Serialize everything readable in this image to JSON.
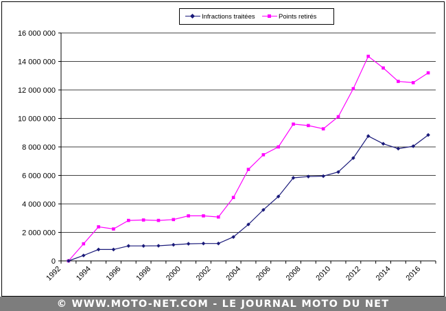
{
  "chart_data": {
    "type": "line",
    "x": [
      1992.5,
      1993.5,
      1994.5,
      1995.5,
      1996.5,
      1997.5,
      1998.5,
      1999.5,
      2000.5,
      2001.5,
      2002.5,
      2003.5,
      2004.5,
      2005.5,
      2006.5,
      2007.5,
      2008.5,
      2009.5,
      2010.5,
      2011.5,
      2012.5,
      2013.5,
      2014.5,
      2015.5,
      2016.5
    ],
    "series": [
      {
        "name": "Infractions traitées",
        "color": "#1a1a7a",
        "marker": "diamond",
        "values": [
          0,
          380000,
          800000,
          800000,
          1050000,
          1050000,
          1060000,
          1130000,
          1200000,
          1220000,
          1220000,
          1680000,
          2560000,
          3580000,
          4520000,
          5830000,
          5920000,
          5950000,
          6240000,
          7220000,
          8760000,
          8220000,
          7880000,
          8050000,
          8840000
        ]
      },
      {
        "name": "Points retirés",
        "color": "#ff00ff",
        "marker": "square",
        "values": [
          0,
          1200000,
          2390000,
          2240000,
          2840000,
          2870000,
          2840000,
          2900000,
          3160000,
          3160000,
          3080000,
          4450000,
          6420000,
          7450000,
          8000000,
          9600000,
          9500000,
          9270000,
          10120000,
          12090000,
          14360000,
          13540000,
          12600000,
          12510000,
          13200000
        ]
      }
    ],
    "x_ticks": [
      "1992",
      "1994",
      "1996",
      "1998",
      "2000",
      "2002",
      "2004",
      "2006",
      "2008",
      "2010",
      "2012",
      "2014",
      "2016"
    ],
    "y_ticks": [
      "0",
      "2 000 000",
      "4 000 000",
      "6 000 000",
      "8 000 000",
      "10 000 000",
      "12 000 000",
      "14 000 000",
      "16 000 000"
    ],
    "ylim": [
      0,
      16000000
    ],
    "xlim": [
      1992,
      2017
    ],
    "grid": "horizontal",
    "legend_position": "top-center"
  },
  "legend": {
    "infractions_label": "Infractions traitées",
    "points_label": "Points retirés"
  },
  "footer": {
    "text": "© WWW.MOTO-NET.COM - LE JOURNAL MOTO DU NET"
  }
}
